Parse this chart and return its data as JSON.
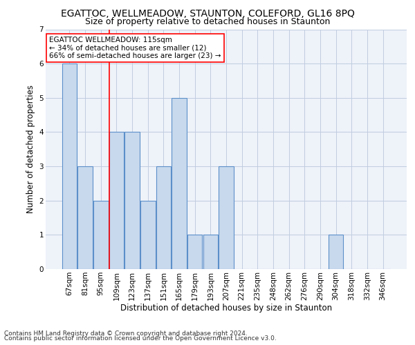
{
  "title": "EGATTOC, WELLMEADOW, STAUNTON, COLEFORD, GL16 8PQ",
  "subtitle": "Size of property relative to detached houses in Staunton",
  "xlabel": "Distribution of detached houses by size in Staunton",
  "ylabel": "Number of detached properties",
  "footer_line1": "Contains HM Land Registry data © Crown copyright and database right 2024.",
  "footer_line2": "Contains public sector information licensed under the Open Government Licence v3.0.",
  "categories": [
    "67sqm",
    "81sqm",
    "95sqm",
    "109sqm",
    "123sqm",
    "137sqm",
    "151sqm",
    "165sqm",
    "179sqm",
    "193sqm",
    "207sqm",
    "221sqm",
    "235sqm",
    "248sqm",
    "262sqm",
    "276sqm",
    "290sqm",
    "304sqm",
    "318sqm",
    "332sqm",
    "346sqm"
  ],
  "values": [
    6,
    3,
    2,
    4,
    4,
    2,
    3,
    5,
    1,
    1,
    3,
    0,
    0,
    0,
    0,
    0,
    0,
    1,
    0,
    0,
    0
  ],
  "bar_color": "#c8d9ed",
  "bar_edge_color": "#5b8fc9",
  "bar_edge_width": 0.8,
  "red_line_bar_index": 3,
  "ylim": [
    0,
    7
  ],
  "yticks": [
    0,
    1,
    2,
    3,
    4,
    5,
    6,
    7
  ],
  "annotation_text": "EGATTOC WELLMEADOW: 115sqm\n← 34% of detached houses are smaller (12)\n66% of semi-detached houses are larger (23) →",
  "annotation_box_color": "white",
  "annotation_box_edge": "red",
  "bg_color": "#eef2f9",
  "grid_color": "#c0cce0",
  "title_fontsize": 10,
  "subtitle_fontsize": 9,
  "axis_label_fontsize": 8.5,
  "tick_fontsize": 7.5,
  "annotation_fontsize": 7.5,
  "footer_fontsize": 6.5
}
